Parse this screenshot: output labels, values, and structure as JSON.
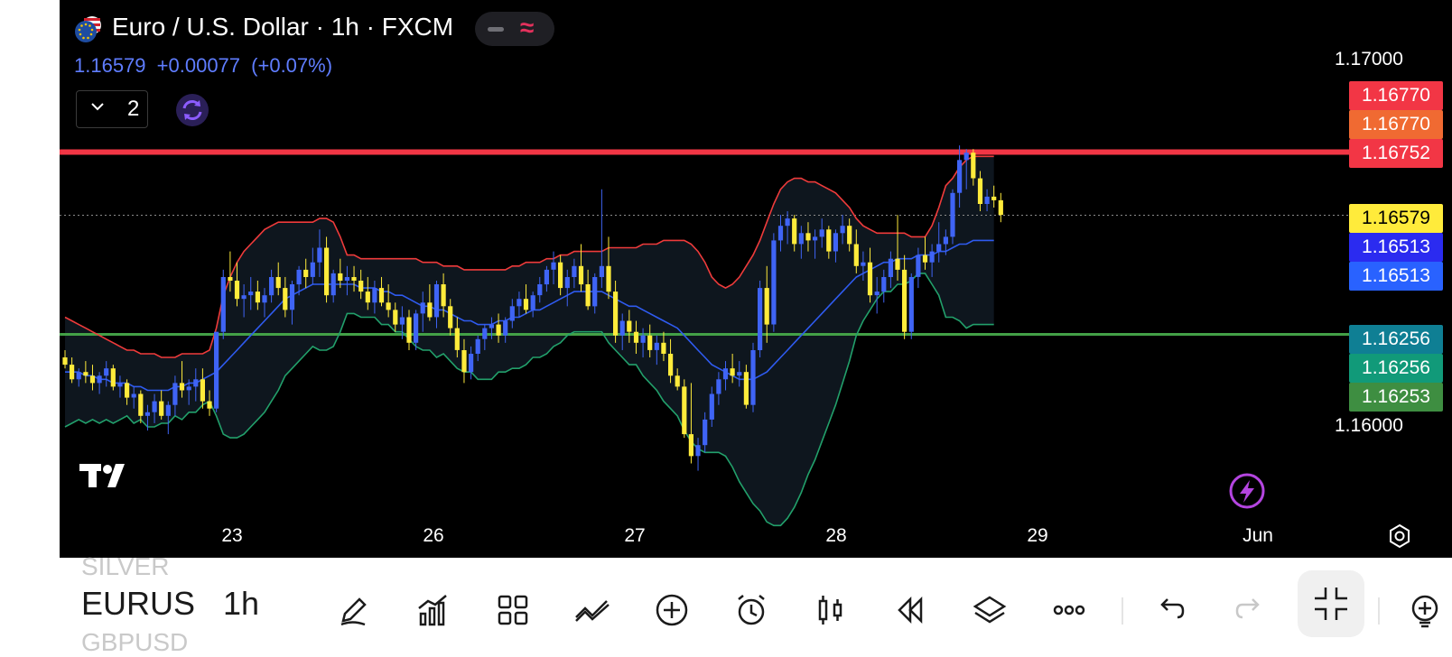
{
  "header": {
    "title": "Euro / U.S. Dollar · 1h · FXCM",
    "last_price": "1.16579",
    "change": "+0.00077",
    "change_pct": "(+0.07%)",
    "indicator_count": "2",
    "flag_icon": "eu-us-flag-icon",
    "pill_icons": [
      "minus-icon",
      "wave-icon"
    ]
  },
  "colors": {
    "candle_up": "#3f64f5",
    "candle_down": "#ffeb3b",
    "bb_upper": "#ef3b3b",
    "bb_basis": "#2f5bf0",
    "bb_lower": "#22a06b",
    "resistance_line": "#f23645",
    "support_line": "#43a047",
    "price_text": "#5f7dff"
  },
  "price_tags": [
    {
      "value": "1.16770",
      "color": "#f23645"
    },
    {
      "value": "1.16770",
      "color": "#f06a32"
    },
    {
      "value": "1.16752",
      "color": "#f23645"
    },
    {
      "value": "1.16579",
      "color": "#ffeb3b"
    },
    {
      "value": "1.16513",
      "color": "#2b2bf0"
    },
    {
      "value": "1.16513",
      "color": "#2962ff"
    },
    {
      "value": "1.16256",
      "color": "#0f7f94"
    },
    {
      "value": "1.16256",
      "color": "#119a79"
    },
    {
      "value": "1.16253",
      "color": "#3e8e41"
    }
  ],
  "chart_data": {
    "type": "candlestick",
    "symbol": "EURUSD",
    "interval": "1h",
    "y_axis_labels": [
      "1.17000",
      "1.16000"
    ],
    "x_axis_labels": [
      "23",
      "26",
      "27",
      "28",
      "29",
      "Jun"
    ],
    "ylim": [
      1.1573,
      1.1707
    ],
    "horizontal_lines": [
      {
        "name": "resistance",
        "value": 1.16752,
        "color": "#f23645"
      },
      {
        "name": "support",
        "value": 1.16253,
        "color": "#43a047"
      }
    ],
    "last_price_line": 1.16579,
    "candles_ohlc": [
      [
        1.1619,
        1.1621,
        1.1616,
        1.1617
      ],
      [
        1.1617,
        1.1619,
        1.1612,
        1.1613
      ],
      [
        1.1613,
        1.1616,
        1.1611,
        1.1615
      ],
      [
        1.1615,
        1.1618,
        1.1612,
        1.1614
      ],
      [
        1.1614,
        1.1617,
        1.161,
        1.1612
      ],
      [
        1.1612,
        1.1615,
        1.1609,
        1.1614
      ],
      [
        1.1614,
        1.1618,
        1.1611,
        1.1616
      ],
      [
        1.1616,
        1.1617,
        1.161,
        1.1611
      ],
      [
        1.1611,
        1.1614,
        1.1608,
        1.1612
      ],
      [
        1.1612,
        1.1613,
        1.1606,
        1.1608
      ],
      [
        1.1608,
        1.1611,
        1.1605,
        1.1609
      ],
      [
        1.1609,
        1.161,
        1.1601,
        1.1603
      ],
      [
        1.1603,
        1.1606,
        1.1599,
        1.1604
      ],
      [
        1.1604,
        1.1609,
        1.1601,
        1.1607
      ],
      [
        1.1607,
        1.161,
        1.1602,
        1.1603
      ],
      [
        1.1603,
        1.1607,
        1.1598,
        1.1606
      ],
      [
        1.1606,
        1.1614,
        1.1603,
        1.1612
      ],
      [
        1.1612,
        1.1618,
        1.1608,
        1.161
      ],
      [
        1.161,
        1.1613,
        1.1606,
        1.1611
      ],
      [
        1.1611,
        1.1616,
        1.1607,
        1.1613
      ],
      [
        1.1613,
        1.1616,
        1.1605,
        1.1607
      ],
      [
        1.1607,
        1.161,
        1.1603,
        1.1605
      ],
      [
        1.1605,
        1.1626,
        1.1604,
        1.1626
      ],
      [
        1.1626,
        1.1643,
        1.1624,
        1.1641
      ],
      [
        1.1641,
        1.1648,
        1.1637,
        1.164
      ],
      [
        1.164,
        1.1645,
        1.1633,
        1.1635
      ],
      [
        1.1635,
        1.1639,
        1.163,
        1.1636
      ],
      [
        1.1636,
        1.1641,
        1.1632,
        1.1637
      ],
      [
        1.1637,
        1.164,
        1.1632,
        1.1634
      ],
      [
        1.1634,
        1.1638,
        1.163,
        1.1636
      ],
      [
        1.1636,
        1.1643,
        1.1634,
        1.1641
      ],
      [
        1.1641,
        1.1645,
        1.1636,
        1.1638
      ],
      [
        1.1638,
        1.1641,
        1.163,
        1.1632
      ],
      [
        1.1632,
        1.164,
        1.1628,
        1.1639
      ],
      [
        1.1639,
        1.1644,
        1.1636,
        1.1643
      ],
      [
        1.1643,
        1.1646,
        1.1638,
        1.1641
      ],
      [
        1.1641,
        1.1649,
        1.1639,
        1.1645
      ],
      [
        1.1645,
        1.1654,
        1.1641,
        1.1649
      ],
      [
        1.1649,
        1.1652,
        1.1634,
        1.1636
      ],
      [
        1.1636,
        1.1643,
        1.1634,
        1.1642
      ],
      [
        1.1642,
        1.1646,
        1.1638,
        1.164
      ],
      [
        1.164,
        1.1644,
        1.1636,
        1.1641
      ],
      [
        1.1641,
        1.1644,
        1.1637,
        1.164
      ],
      [
        1.164,
        1.1643,
        1.1635,
        1.1637
      ],
      [
        1.1637,
        1.1641,
        1.1632,
        1.1634
      ],
      [
        1.1634,
        1.164,
        1.1631,
        1.1638
      ],
      [
        1.1638,
        1.1641,
        1.1633,
        1.1634
      ],
      [
        1.1634,
        1.1639,
        1.163,
        1.1632
      ],
      [
        1.1632,
        1.1634,
        1.1626,
        1.1628
      ],
      [
        1.1628,
        1.1633,
        1.1624,
        1.163
      ],
      [
        1.163,
        1.1632,
        1.1621,
        1.1623
      ],
      [
        1.1623,
        1.1632,
        1.1621,
        1.1631
      ],
      [
        1.1631,
        1.1637,
        1.1626,
        1.1634
      ],
      [
        1.1634,
        1.1639,
        1.1629,
        1.163
      ],
      [
        1.163,
        1.164,
        1.1627,
        1.1639
      ],
      [
        1.1639,
        1.1642,
        1.163,
        1.1633
      ],
      [
        1.1633,
        1.1635,
        1.1625,
        1.1627
      ],
      [
        1.1627,
        1.163,
        1.1619,
        1.1621
      ],
      [
        1.1621,
        1.1624,
        1.1612,
        1.1615
      ],
      [
        1.1615,
        1.1622,
        1.1613,
        1.162
      ],
      [
        1.162,
        1.1625,
        1.1618,
        1.1624
      ],
      [
        1.1624,
        1.1628,
        1.1621,
        1.1627
      ],
      [
        1.1627,
        1.163,
        1.1624,
        1.1628
      ],
      [
        1.1628,
        1.1631,
        1.1623,
        1.1625
      ],
      [
        1.1625,
        1.163,
        1.1623,
        1.1629
      ],
      [
        1.1629,
        1.1635,
        1.1627,
        1.1633
      ],
      [
        1.1633,
        1.1637,
        1.163,
        1.1635
      ],
      [
        1.1635,
        1.1639,
        1.1631,
        1.1632
      ],
      [
        1.1632,
        1.1637,
        1.163,
        1.1636
      ],
      [
        1.1636,
        1.1641,
        1.1634,
        1.1639
      ],
      [
        1.1639,
        1.1644,
        1.1637,
        1.1643
      ],
      [
        1.1643,
        1.1648,
        1.1639,
        1.1645
      ],
      [
        1.1645,
        1.1647,
        1.1636,
        1.1638
      ],
      [
        1.1638,
        1.1643,
        1.1633,
        1.1641
      ],
      [
        1.1641,
        1.1646,
        1.1638,
        1.1644
      ],
      [
        1.1644,
        1.165,
        1.1637,
        1.1639
      ],
      [
        1.1639,
        1.1643,
        1.1632,
        1.1633
      ],
      [
        1.1633,
        1.1642,
        1.1631,
        1.1641
      ],
      [
        1.1641,
        1.1665,
        1.1638,
        1.1644
      ],
      [
        1.1644,
        1.1652,
        1.1635,
        1.1637
      ],
      [
        1.1637,
        1.164,
        1.1623,
        1.1625
      ],
      [
        1.1625,
        1.1631,
        1.1621,
        1.1629
      ],
      [
        1.1629,
        1.1632,
        1.1623,
        1.1626
      ],
      [
        1.1626,
        1.1629,
        1.162,
        1.1623
      ],
      [
        1.1623,
        1.1627,
        1.1619,
        1.1625
      ],
      [
        1.1625,
        1.1628,
        1.1619,
        1.1621
      ],
      [
        1.1621,
        1.1625,
        1.1617,
        1.1623
      ],
      [
        1.1623,
        1.1626,
        1.1618,
        1.162
      ],
      [
        1.162,
        1.1624,
        1.1612,
        1.1614
      ],
      [
        1.1614,
        1.1616,
        1.161,
        1.1611
      ],
      [
        1.1611,
        1.1613,
        1.1597,
        1.1598
      ],
      [
        1.1598,
        1.1612,
        1.159,
        1.1592
      ],
      [
        1.1592,
        1.1597,
        1.1588,
        1.1595
      ],
      [
        1.1595,
        1.1604,
        1.1593,
        1.1602
      ],
      [
        1.1602,
        1.1611,
        1.16,
        1.1609
      ],
      [
        1.1609,
        1.1615,
        1.1606,
        1.1613
      ],
      [
        1.1613,
        1.1618,
        1.161,
        1.1616
      ],
      [
        1.1616,
        1.162,
        1.1612,
        1.1614
      ],
      [
        1.1614,
        1.1618,
        1.1611,
        1.1615
      ],
      [
        1.1615,
        1.1617,
        1.1605,
        1.1606
      ],
      [
        1.1606,
        1.1623,
        1.1604,
        1.1621
      ],
      [
        1.1621,
        1.164,
        1.1619,
        1.1638
      ],
      [
        1.1638,
        1.1644,
        1.1623,
        1.1628
      ],
      [
        1.1628,
        1.1653,
        1.1626,
        1.1651
      ],
      [
        1.1651,
        1.1658,
        1.1648,
        1.1655
      ],
      [
        1.1655,
        1.1659,
        1.165,
        1.1657
      ],
      [
        1.1657,
        1.1658,
        1.1648,
        1.165
      ],
      [
        1.165,
        1.1655,
        1.1646,
        1.1653
      ],
      [
        1.1653,
        1.1656,
        1.1648,
        1.1651
      ],
      [
        1.1651,
        1.1654,
        1.1646,
        1.1652
      ],
      [
        1.1652,
        1.1657,
        1.1649,
        1.1654
      ],
      [
        1.1654,
        1.1655,
        1.1646,
        1.1648
      ],
      [
        1.1648,
        1.1654,
        1.1645,
        1.1653
      ],
      [
        1.1653,
        1.1658,
        1.165,
        1.1655
      ],
      [
        1.1655,
        1.1657,
        1.1648,
        1.165
      ],
      [
        1.165,
        1.1654,
        1.1642,
        1.1644
      ],
      [
        1.1644,
        1.1648,
        1.164,
        1.1645
      ],
      [
        1.1645,
        1.1649,
        1.1634,
        1.1636
      ],
      [
        1.1636,
        1.1641,
        1.1631,
        1.1637
      ],
      [
        1.1637,
        1.1643,
        1.1634,
        1.1641
      ],
      [
        1.1641,
        1.1648,
        1.1638,
        1.1646
      ],
      [
        1.1646,
        1.1658,
        1.164,
        1.1643
      ],
      [
        1.1643,
        1.1647,
        1.1624,
        1.1626
      ],
      [
        1.1626,
        1.1642,
        1.1624,
        1.1641
      ],
      [
        1.1641,
        1.1649,
        1.1638,
        1.1647
      ],
      [
        1.1647,
        1.1652,
        1.1643,
        1.1645
      ],
      [
        1.1645,
        1.165,
        1.1641,
        1.1648
      ],
      [
        1.1648,
        1.1656,
        1.1645,
        1.165
      ],
      [
        1.165,
        1.1654,
        1.1647,
        1.1652
      ],
      [
        1.1652,
        1.1665,
        1.165,
        1.1664
      ],
      [
        1.1664,
        1.1677,
        1.166,
        1.1673
      ],
      [
        1.1673,
        1.1676,
        1.1665,
        1.1675
      ],
      [
        1.1675,
        1.1676,
        1.1666,
        1.1668
      ],
      [
        1.1668,
        1.167,
        1.1659,
        1.1661
      ],
      [
        1.1661,
        1.1665,
        1.1659,
        1.1663
      ],
      [
        1.1663,
        1.1666,
        1.166,
        1.1662
      ],
      [
        1.1662,
        1.1664,
        1.1656,
        1.1658
      ]
    ],
    "bb_basis": [
      1.1615,
      1.1615,
      1.1615,
      1.1614,
      1.1614,
      1.1613,
      1.1613,
      1.1612,
      1.1612,
      1.1612,
      1.1611,
      1.1611,
      1.161,
      1.161,
      1.161,
      1.161,
      1.1611,
      1.1611,
      1.1612,
      1.1612,
      1.1613,
      1.1614,
      1.1615,
      1.1617,
      1.1619,
      1.1621,
      1.1623,
      1.1625,
      1.1627,
      1.1629,
      1.1631,
      1.1633,
      1.1635,
      1.1636,
      1.1637,
      1.1638,
      1.1639,
      1.1639,
      1.1639,
      1.1639,
      1.1639,
      1.1639,
      1.1639,
      1.1638,
      1.1638,
      1.1638,
      1.1637,
      1.1637,
      1.1636,
      1.1636,
      1.1635,
      1.1634,
      1.1633,
      1.1633,
      1.1632,
      1.1632,
      1.1631,
      1.163,
      1.1629,
      1.1629,
      1.1628,
      1.1628,
      1.1628,
      1.1629,
      1.1629,
      1.163,
      1.163,
      1.1631,
      1.1632,
      1.1632,
      1.1633,
      1.1634,
      1.1635,
      1.1636,
      1.1637,
      1.1637,
      1.1637,
      1.1637,
      1.1637,
      1.1636,
      1.1635,
      1.1634,
      1.1633,
      1.1633,
      1.1632,
      1.1631,
      1.163,
      1.1629,
      1.1628,
      1.1627,
      1.1625,
      1.1623,
      1.1621,
      1.1619,
      1.1617,
      1.1616,
      1.1615,
      1.1614,
      1.1613,
      1.1613,
      1.1613,
      1.1614,
      1.1615,
      1.1617,
      1.1619,
      1.1621,
      1.1623,
      1.1625,
      1.1627,
      1.1629,
      1.1631,
      1.1633,
      1.1635,
      1.1637,
      1.1639,
      1.1641,
      1.1642,
      1.1643,
      1.1644,
      1.1645,
      1.1645,
      1.1646,
      1.1646,
      1.1646,
      1.1647,
      1.1647,
      1.1647,
      1.1648,
      1.1648,
      1.1649,
      1.165,
      1.165,
      1.1651,
      1.1651,
      1.1651,
      1.1651
    ],
    "bb_upper": [
      1.163,
      1.1629,
      1.1628,
      1.1627,
      1.1626,
      1.1625,
      1.1624,
      1.1623,
      1.1622,
      1.1621,
      1.1621,
      1.162,
      1.162,
      1.162,
      1.1619,
      1.1619,
      1.1619,
      1.162,
      1.162,
      1.162,
      1.162,
      1.1621,
      1.1627,
      1.1636,
      1.1641,
      1.1645,
      1.1648,
      1.165,
      1.1652,
      1.1654,
      1.1655,
      1.1656,
      1.1656,
      1.1656,
      1.1656,
      1.1656,
      1.1656,
      1.1657,
      1.1657,
      1.1656,
      1.1652,
      1.1647,
      1.1647,
      1.1646,
      1.1646,
      1.1646,
      1.1646,
      1.1646,
      1.1646,
      1.1646,
      1.1646,
      1.1646,
      1.1645,
      1.1645,
      1.1645,
      1.1644,
      1.1644,
      1.1644,
      1.1643,
      1.1643,
      1.1643,
      1.1643,
      1.1643,
      1.1643,
      1.1643,
      1.1644,
      1.1644,
      1.1645,
      1.1645,
      1.1645,
      1.1646,
      1.1646,
      1.1647,
      1.1647,
      1.1648,
      1.1648,
      1.1648,
      1.1648,
      1.1648,
      1.1649,
      1.1649,
      1.1649,
      1.1649,
      1.1649,
      1.165,
      1.165,
      1.165,
      1.1651,
      1.1651,
      1.1651,
      1.1651,
      1.165,
      1.1648,
      1.1645,
      1.1641,
      1.1639,
      1.1638,
      1.1639,
      1.1641,
      1.1644,
      1.1647,
      1.1651,
      1.1656,
      1.1661,
      1.1665,
      1.1667,
      1.1668,
      1.1668,
      1.1667,
      1.1667,
      1.1666,
      1.1665,
      1.1664,
      1.1662,
      1.166,
      1.1657,
      1.1655,
      1.1654,
      1.1653,
      1.1653,
      1.1653,
      1.1653,
      1.1653,
      1.1652,
      1.1652,
      1.1652,
      1.1655,
      1.166,
      1.1666,
      1.1668,
      1.1671,
      1.1673,
      1.1674,
      1.1674,
      1.1674,
      1.1674
    ],
    "bb_lower": [
      1.16,
      1.1601,
      1.1602,
      1.1601,
      1.1602,
      1.1601,
      1.1602,
      1.1601,
      1.1602,
      1.1603,
      1.1601,
      1.1602,
      1.16,
      1.16,
      1.1601,
      1.1601,
      1.1603,
      1.1602,
      1.1604,
      1.1604,
      1.1606,
      1.1607,
      1.1603,
      1.1598,
      1.1597,
      1.1597,
      1.1598,
      1.16,
      1.1602,
      1.1604,
      1.1607,
      1.161,
      1.1614,
      1.1616,
      1.1618,
      1.162,
      1.1622,
      1.1621,
      1.1621,
      1.1622,
      1.1626,
      1.1631,
      1.1631,
      1.163,
      1.163,
      1.163,
      1.1628,
      1.1628,
      1.1626,
      1.1626,
      1.1624,
      1.1622,
      1.1621,
      1.1621,
      1.1619,
      1.162,
      1.1618,
      1.1616,
      1.1615,
      1.1615,
      1.1613,
      1.1613,
      1.1613,
      1.1615,
      1.1615,
      1.1616,
      1.1616,
      1.1617,
      1.1619,
      1.1619,
      1.162,
      1.1622,
      1.1623,
      1.1625,
      1.1626,
      1.1626,
      1.1626,
      1.1626,
      1.1626,
      1.1623,
      1.1621,
      1.1619,
      1.1617,
      1.1617,
      1.1614,
      1.1612,
      1.161,
      1.1607,
      1.1605,
      1.1603,
      1.1599,
      1.1596,
      1.1594,
      1.1593,
      1.1593,
      1.1593,
      1.1592,
      1.1589,
      1.1585,
      1.1582,
      1.1579,
      1.1577,
      1.1574,
      1.1573,
      1.1573,
      1.1575,
      1.1578,
      1.1582,
      1.1587,
      1.1591,
      1.1596,
      1.1601,
      1.1606,
      1.1612,
      1.1618,
      1.1625,
      1.1629,
      1.1632,
      1.1635,
      1.1637,
      1.1637,
      1.1639,
      1.1639,
      1.164,
      1.1642,
      1.1642,
      1.1639,
      1.1636,
      1.163,
      1.163,
      1.1629,
      1.1627,
      1.1628,
      1.1628,
      1.1628,
      1.1628
    ]
  },
  "axis": {
    "y_labels": [
      "1.17000",
      "1.16000"
    ],
    "x_labels": [
      "23",
      "26",
      "27",
      "28",
      "29",
      "Jun"
    ]
  },
  "toolbar": {
    "symbols": [
      "SILVER",
      "EURUSD",
      "GBPUSD"
    ],
    "interval": "1h",
    "icons": [
      "pencil-icon",
      "indicators-icon",
      "layout-grid-icon",
      "compare-icon",
      "add-circle-icon",
      "alarm-icon",
      "candles-icon",
      "replay-icon",
      "layers-icon",
      "more-icon",
      "undo-icon",
      "redo-icon",
      "collapse-icon",
      "add-watchlist-icon"
    ]
  }
}
